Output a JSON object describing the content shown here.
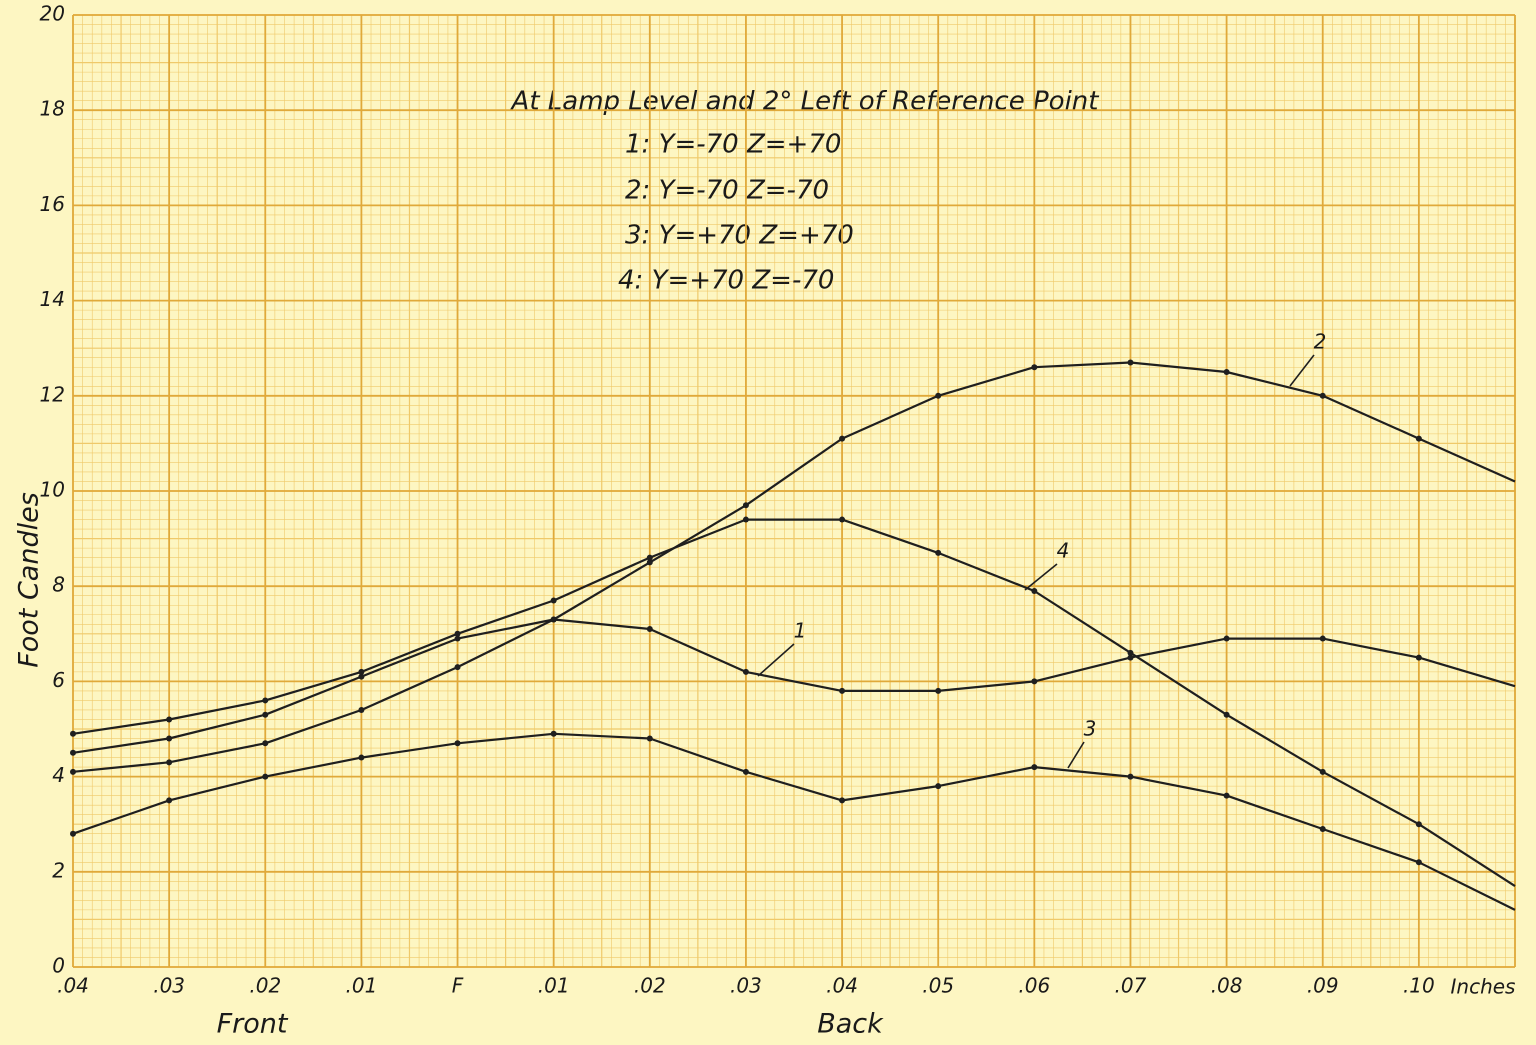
{
  "chart_data": {
    "type": "line",
    "title": "At Lamp Level and 2° Left of Reference Point",
    "legend_lines": [
      "1:  Y=-70  Z=+70",
      "2:  Y=-70  Z=-70",
      "3:  Y=+70  Z=+70",
      "4:  Y=+70  Z=-70"
    ],
    "y_label": "Foot Candles",
    "x_label": "Inches",
    "x_group_labels": [
      "Front",
      "Back"
    ],
    "categories": [
      ".04",
      ".03",
      ".02",
      ".01",
      "F",
      ".01",
      ".02",
      ".03",
      ".04",
      ".05",
      ".06",
      ".07",
      ".08",
      ".09",
      ".10",
      null
    ],
    "series": [
      {
        "name": "1",
        "color": "#1f1f1f",
        "values": [
          4.5,
          4.8,
          5.3,
          6.1,
          6.9,
          7.3,
          7.1,
          6.2,
          5.8,
          5.8,
          6.0,
          6.5,
          6.9,
          6.9,
          6.5,
          5.9
        ]
      },
      {
        "name": "2",
        "color": "#1f1f1f",
        "values": [
          4.1,
          4.3,
          4.7,
          5.4,
          6.3,
          7.3,
          8.5,
          9.7,
          11.1,
          12.0,
          12.6,
          12.7,
          12.5,
          12.0,
          11.1,
          10.2
        ]
      },
      {
        "name": "3",
        "color": "#1f1f1f",
        "values": [
          2.8,
          3.5,
          4.0,
          4.4,
          4.7,
          4.9,
          4.8,
          4.1,
          3.5,
          3.8,
          4.2,
          4.0,
          3.6,
          2.9,
          2.2,
          1.2
        ]
      },
      {
        "name": "4",
        "color": "#1f1f1f",
        "values": [
          4.9,
          5.2,
          5.6,
          6.2,
          7.0,
          7.7,
          8.6,
          9.4,
          9.4,
          8.7,
          7.9,
          6.6,
          5.3,
          4.1,
          3.0,
          1.7
        ]
      }
    ],
    "ylim": [
      0,
      20
    ],
    "yticks": [
      0,
      2,
      4,
      6,
      8,
      10,
      12,
      14,
      16,
      18,
      20
    ],
    "grid": true
  }
}
